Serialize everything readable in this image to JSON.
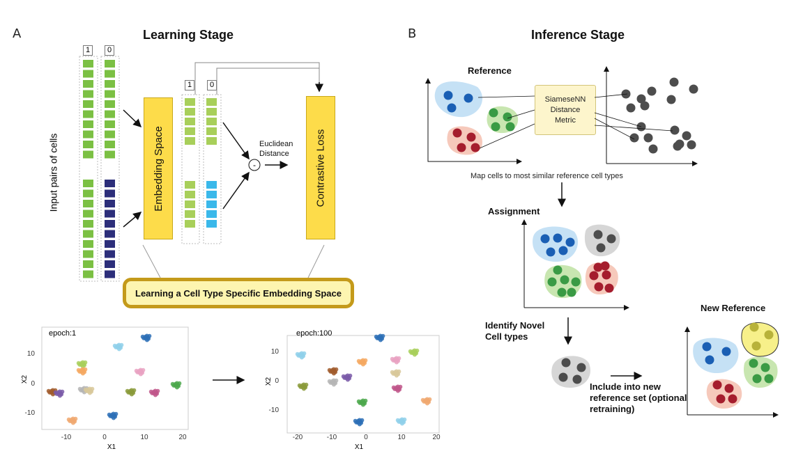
{
  "panel_a": {
    "letter": "A",
    "title": "Learning Stage",
    "input_label": "Input pairs of cells",
    "pair_labels": [
      "1",
      "0"
    ],
    "embed_pair_labels": [
      "1",
      "0"
    ],
    "embedding_label": "Embedding Space",
    "distance_symbol": "-",
    "distance_label": "Euclidean Distance",
    "loss_label": "Contrastive Loss",
    "banner": "Learning a Cell Type Specific Embedding Space"
  },
  "plots": [
    {
      "title": "epoch:1",
      "xlabel": "X1",
      "ylabel": "X2",
      "xticks": [
        "-10",
        "0",
        "10",
        "20"
      ],
      "yticks": [
        "10",
        "0",
        "-10"
      ]
    },
    {
      "title": "epoch:100",
      "xlabel": "X1",
      "ylabel": "X2",
      "xticks": [
        "-20",
        "-10",
        "0",
        "10",
        "20"
      ],
      "yticks": [
        "10",
        "0",
        "-10"
      ]
    }
  ],
  "panel_b": {
    "letter": "B",
    "title": "Inference Stage",
    "reference_label": "Reference",
    "metric_label": "SiameseNN Distance Metric",
    "map_caption": "Map cells to most similar reference cell types",
    "assignment_label": "Assignment",
    "novel_label": "Identify Novel Cell types",
    "include_label": "Include into new reference set (optional retraining)",
    "new_reference_label": "New Reference"
  },
  "colors": {
    "green_cell": "#7bc043",
    "navy_cell": "#2c2e7a",
    "lime_cell": "#a8cf5a",
    "cyan_cell": "#3ab8ea",
    "yellow_box": "#fddc4a",
    "blue_blob": "#c5e1f5",
    "blue_dot": "#1a5fb4",
    "green_blob": "#c8e6b0",
    "green_dot": "#3a9b45",
    "red_blob": "#f6c9bb",
    "red_dot": "#a51d2d",
    "gray_blob": "#d6d6d6",
    "gray_dot": "#4d4d4d",
    "yellow_blob": "#f7f08a",
    "yellow_dot": "#b8b23a"
  }
}
